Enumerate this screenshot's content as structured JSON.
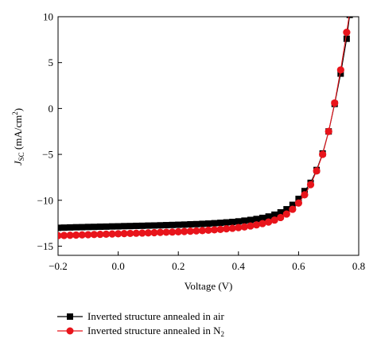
{
  "chart_data": {
    "type": "scatter",
    "xlabel": "Voltage (V)",
    "ylabel": {
      "main": "J",
      "sub": "SC",
      "rest": " (mA/cm",
      "sup": "2",
      "end": ")"
    },
    "xlim": [
      -0.2,
      0.8
    ],
    "ylim": [
      -16,
      10
    ],
    "xticks": [
      -0.2,
      0.0,
      0.2,
      0.4,
      0.6,
      0.8
    ],
    "xtick_labels": [
      "−0.2",
      "0.0",
      "0.2",
      "0.4",
      "0.6",
      "0.8"
    ],
    "yticks": [
      -15,
      -10,
      -5,
      0,
      5,
      10
    ],
    "ytick_labels": [
      "−15",
      "−10",
      "−5",
      "0",
      "5",
      "10"
    ],
    "grid": false,
    "legend_position": "bottom-outside",
    "series": [
      {
        "name": "Inverted structure annealed in air",
        "name_sub": "",
        "color": "#000000",
        "marker": "square",
        "x": [
          -0.2,
          -0.18,
          -0.16,
          -0.14,
          -0.12,
          -0.1,
          -0.08,
          -0.06,
          -0.04,
          -0.02,
          0.0,
          0.02,
          0.04,
          0.06,
          0.08,
          0.1,
          0.12,
          0.14,
          0.16,
          0.18,
          0.2,
          0.22,
          0.24,
          0.26,
          0.28,
          0.3,
          0.32,
          0.34,
          0.36,
          0.38,
          0.4,
          0.42,
          0.44,
          0.46,
          0.48,
          0.5,
          0.52,
          0.54,
          0.56,
          0.58,
          0.6,
          0.62,
          0.64,
          0.66,
          0.68,
          0.7,
          0.72,
          0.74,
          0.76,
          0.77
        ],
        "y": [
          -13.0,
          -12.98,
          -12.96,
          -12.94,
          -12.93,
          -12.91,
          -12.9,
          -12.88,
          -12.87,
          -12.85,
          -12.84,
          -12.82,
          -12.81,
          -12.79,
          -12.78,
          -12.76,
          -12.75,
          -12.73,
          -12.71,
          -12.69,
          -12.67,
          -12.65,
          -12.62,
          -12.6,
          -12.57,
          -12.54,
          -12.5,
          -12.46,
          -12.41,
          -12.36,
          -12.3,
          -12.22,
          -12.14,
          -12.04,
          -11.92,
          -11.77,
          -11.57,
          -11.32,
          -10.98,
          -10.5,
          -9.85,
          -9.0,
          -8.1,
          -6.7,
          -4.9,
          -2.5,
          0.5,
          3.8,
          7.6,
          10.2
        ]
      },
      {
        "name": "Inverted structure annealed in N",
        "name_sub": "2",
        "color": "#e8141b",
        "marker": "circle",
        "x": [
          -0.2,
          -0.18,
          -0.16,
          -0.14,
          -0.12,
          -0.1,
          -0.08,
          -0.06,
          -0.04,
          -0.02,
          0.0,
          0.02,
          0.04,
          0.06,
          0.08,
          0.1,
          0.12,
          0.14,
          0.16,
          0.18,
          0.2,
          0.22,
          0.24,
          0.26,
          0.28,
          0.3,
          0.32,
          0.34,
          0.36,
          0.38,
          0.4,
          0.42,
          0.44,
          0.46,
          0.48,
          0.5,
          0.52,
          0.54,
          0.56,
          0.58,
          0.6,
          0.62,
          0.64,
          0.66,
          0.68,
          0.7,
          0.72,
          0.74,
          0.76,
          0.77
        ],
        "y": [
          -13.85,
          -13.83,
          -13.81,
          -13.79,
          -13.77,
          -13.75,
          -13.73,
          -13.71,
          -13.69,
          -13.67,
          -13.65,
          -13.63,
          -13.61,
          -13.59,
          -13.57,
          -13.55,
          -13.53,
          -13.5,
          -13.48,
          -13.46,
          -13.43,
          -13.4,
          -13.37,
          -13.34,
          -13.3,
          -13.26,
          -13.22,
          -13.17,
          -13.11,
          -13.05,
          -12.98,
          -12.9,
          -12.8,
          -12.68,
          -12.54,
          -12.37,
          -12.16,
          -11.88,
          -11.5,
          -10.98,
          -10.3,
          -9.4,
          -8.3,
          -6.8,
          -5.0,
          -2.5,
          0.6,
          4.2,
          8.3,
          10.5
        ]
      }
    ]
  }
}
